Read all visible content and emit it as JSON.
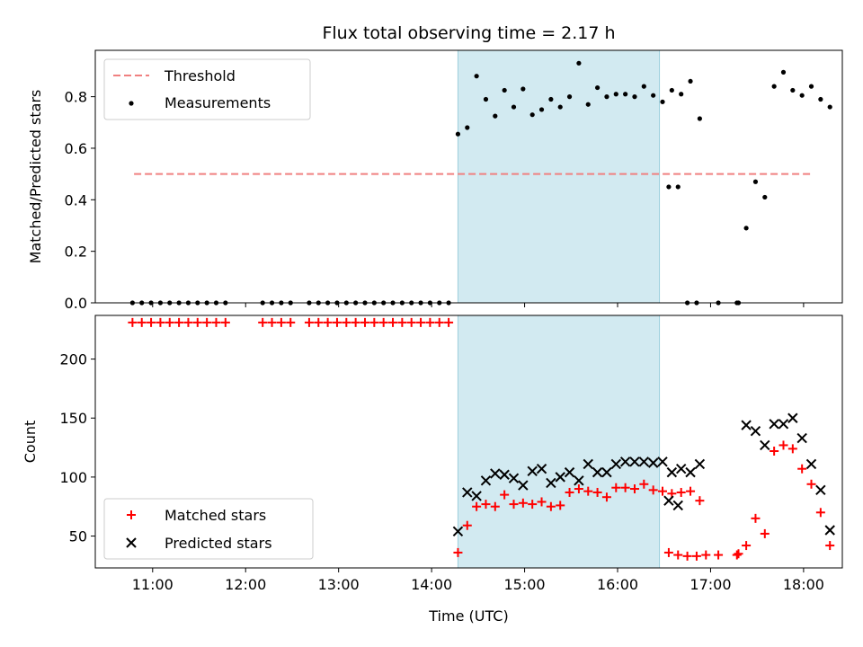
{
  "chart_data": [
    {
      "type": "scatter",
      "title": "Flux total observing time = 2.17 h",
      "xlabel": "",
      "ylabel": "Matched/Predicted stars",
      "ylim": [
        0,
        0.98
      ],
      "yticks": [
        "0.0",
        "0.2",
        "0.4",
        "0.6",
        "0.8"
      ],
      "grid": false,
      "legend_position": "upper-left",
      "threshold": {
        "name": "Threshold",
        "value": 0.5,
        "x_start": "10:48",
        "x_end": "18:05",
        "color": "#f08080"
      },
      "shaded_interval": {
        "start": "14:17",
        "end": "16:27",
        "color": "#add8e6"
      },
      "series": [
        {
          "name": "Measurements",
          "color": "#000000",
          "points": [
            [
              "10:47",
              0
            ],
            [
              "10:53",
              0
            ],
            [
              "10:59",
              0
            ],
            [
              "11:05",
              0
            ],
            [
              "11:11",
              0
            ],
            [
              "11:17",
              0
            ],
            [
              "11:23",
              0
            ],
            [
              "11:29",
              0
            ],
            [
              "11:35",
              0
            ],
            [
              "11:41",
              0
            ],
            [
              "11:47",
              0
            ],
            [
              "12:11",
              0
            ],
            [
              "12:17",
              0
            ],
            [
              "12:23",
              0
            ],
            [
              "12:29",
              0
            ],
            [
              "12:41",
              0
            ],
            [
              "12:47",
              0
            ],
            [
              "12:53",
              0
            ],
            [
              "12:59",
              0
            ],
            [
              "13:05",
              0
            ],
            [
              "13:11",
              0
            ],
            [
              "13:17",
              0
            ],
            [
              "13:23",
              0
            ],
            [
              "13:29",
              0
            ],
            [
              "13:35",
              0
            ],
            [
              "13:41",
              0
            ],
            [
              "13:47",
              0
            ],
            [
              "13:53",
              0
            ],
            [
              "13:59",
              0
            ],
            [
              "14:05",
              0
            ],
            [
              "14:11",
              0
            ],
            [
              "14:17",
              0.655
            ],
            [
              "14:23",
              0.68
            ],
            [
              "14:29",
              0.88
            ],
            [
              "14:35",
              0.79
            ],
            [
              "14:41",
              0.725
            ],
            [
              "14:47",
              0.825
            ],
            [
              "14:53",
              0.76
            ],
            [
              "14:59",
              0.83
            ],
            [
              "15:05",
              0.73
            ],
            [
              "15:11",
              0.75
            ],
            [
              "15:17",
              0.79
            ],
            [
              "15:23",
              0.76
            ],
            [
              "15:29",
              0.8
            ],
            [
              "15:35",
              0.93
            ],
            [
              "15:41",
              0.77
            ],
            [
              "15:47",
              0.835
            ],
            [
              "15:53",
              0.8
            ],
            [
              "15:59",
              0.81
            ],
            [
              "16:05",
              0.81
            ],
            [
              "16:11",
              0.8
            ],
            [
              "16:17",
              0.84
            ],
            [
              "16:23",
              0.805
            ],
            [
              "16:29",
              0.78
            ],
            [
              "16:35",
              0.825
            ],
            [
              "16:41",
              0.81
            ],
            [
              "16:47",
              0.86
            ],
            [
              "16:53",
              0.715
            ],
            [
              "16:33",
              0.45
            ],
            [
              "16:39",
              0.45
            ],
            [
              "16:45",
              0
            ],
            [
              "16:51",
              0
            ],
            [
              "17:05",
              0
            ],
            [
              "17:17",
              0
            ],
            [
              "17:18",
              0
            ],
            [
              "17:23",
              0.29
            ],
            [
              "17:29",
              0.47
            ],
            [
              "17:35",
              0.41
            ],
            [
              "17:41",
              0.84
            ],
            [
              "17:47",
              0.895
            ],
            [
              "17:53",
              0.825
            ],
            [
              "17:59",
              0.805
            ],
            [
              "18:05",
              0.84
            ],
            [
              "18:11",
              0.79
            ],
            [
              "18:17",
              0.76
            ]
          ]
        }
      ]
    },
    {
      "type": "scatter",
      "title": "",
      "xlabel": "Time (UTC)",
      "ylabel": "Count",
      "xlim": [
        "10:23",
        "18:25"
      ],
      "xticks": [
        "11:00",
        "12:00",
        "13:00",
        "14:00",
        "15:00",
        "16:00",
        "17:00",
        "18:00"
      ],
      "ylim": [
        23,
        237
      ],
      "yticks": [
        "50",
        "100",
        "150",
        "200"
      ],
      "grid": false,
      "legend_position": "lower-left",
      "shaded_interval": {
        "start": "14:17",
        "end": "16:27",
        "color": "#add8e6"
      },
      "series": [
        {
          "name": "Matched stars",
          "marker": "plus",
          "color": "#ff0000",
          "points": [
            [
              "10:47",
              231
            ],
            [
              "10:53",
              231
            ],
            [
              "10:59",
              231
            ],
            [
              "11:05",
              231
            ],
            [
              "11:11",
              231
            ],
            [
              "11:17",
              231
            ],
            [
              "11:23",
              231
            ],
            [
              "11:29",
              231
            ],
            [
              "11:35",
              231
            ],
            [
              "11:41",
              231
            ],
            [
              "11:47",
              231
            ],
            [
              "12:11",
              231
            ],
            [
              "12:17",
              231
            ],
            [
              "12:23",
              231
            ],
            [
              "12:29",
              231
            ],
            [
              "12:41",
              231
            ],
            [
              "12:47",
              231
            ],
            [
              "12:53",
              231
            ],
            [
              "12:59",
              231
            ],
            [
              "13:05",
              231
            ],
            [
              "13:11",
              231
            ],
            [
              "13:17",
              231
            ],
            [
              "13:23",
              231
            ],
            [
              "13:29",
              231
            ],
            [
              "13:35",
              231
            ],
            [
              "13:41",
              231
            ],
            [
              "13:47",
              231
            ],
            [
              "13:53",
              231
            ],
            [
              "13:59",
              231
            ],
            [
              "14:05",
              231
            ],
            [
              "14:11",
              231
            ],
            [
              "14:17",
              36
            ],
            [
              "14:23",
              59
            ],
            [
              "14:29",
              75
            ],
            [
              "14:35",
              77
            ],
            [
              "14:41",
              75
            ],
            [
              "14:47",
              85
            ],
            [
              "14:53",
              77
            ],
            [
              "14:59",
              78
            ],
            [
              "15:05",
              77
            ],
            [
              "15:11",
              79
            ],
            [
              "15:17",
              75
            ],
            [
              "15:23",
              76
            ],
            [
              "15:29",
              87
            ],
            [
              "15:35",
              90
            ],
            [
              "15:41",
              88
            ],
            [
              "15:47",
              87
            ],
            [
              "15:53",
              83
            ],
            [
              "15:59",
              91
            ],
            [
              "16:05",
              91
            ],
            [
              "16:11",
              90
            ],
            [
              "16:17",
              94
            ],
            [
              "16:23",
              89
            ],
            [
              "16:29",
              88
            ],
            [
              "16:35",
              86
            ],
            [
              "16:41",
              87
            ],
            [
              "16:47",
              88
            ],
            [
              "16:53",
              80
            ],
            [
              "16:33",
              36
            ],
            [
              "16:39",
              34
            ],
            [
              "16:45",
              33
            ],
            [
              "16:51",
              33
            ],
            [
              "16:57",
              34
            ],
            [
              "17:05",
              34
            ],
            [
              "17:17",
              34
            ],
            [
              "17:18",
              35
            ],
            [
              "17:23",
              42
            ],
            [
              "17:29",
              65
            ],
            [
              "17:35",
              52
            ],
            [
              "17:41",
              122
            ],
            [
              "17:47",
              127
            ],
            [
              "17:53",
              124
            ],
            [
              "17:59",
              107
            ],
            [
              "18:05",
              94
            ],
            [
              "18:11",
              70
            ],
            [
              "18:17",
              42
            ]
          ]
        },
        {
          "name": "Predicted stars",
          "marker": "x",
          "color": "#000000",
          "points": [
            [
              "14:17",
              54
            ],
            [
              "14:23",
              87
            ],
            [
              "14:29",
              84
            ],
            [
              "14:35",
              97
            ],
            [
              "14:41",
              103
            ],
            [
              "14:47",
              102
            ],
            [
              "14:53",
              99
            ],
            [
              "14:59",
              93
            ],
            [
              "15:05",
              105
            ],
            [
              "15:11",
              107
            ],
            [
              "15:17",
              95
            ],
            [
              "15:23",
              100
            ],
            [
              "15:29",
              104
            ],
            [
              "15:35",
              97
            ],
            [
              "15:41",
              111
            ],
            [
              "15:47",
              104
            ],
            [
              "15:53",
              104
            ],
            [
              "15:59",
              111
            ],
            [
              "16:05",
              113
            ],
            [
              "16:11",
              113
            ],
            [
              "16:17",
              113
            ],
            [
              "16:23",
              112
            ],
            [
              "16:29",
              113
            ],
            [
              "16:35",
              104
            ],
            [
              "16:41",
              107
            ],
            [
              "16:47",
              104
            ],
            [
              "16:53",
              111
            ],
            [
              "16:33",
              80
            ],
            [
              "16:39",
              76
            ],
            [
              "17:23",
              144
            ],
            [
              "17:29",
              139
            ],
            [
              "17:35",
              127
            ],
            [
              "17:41",
              145
            ],
            [
              "17:47",
              145
            ],
            [
              "17:53",
              150
            ],
            [
              "17:59",
              133
            ],
            [
              "18:05",
              111
            ],
            [
              "18:11",
              89
            ],
            [
              "18:17",
              55
            ]
          ]
        }
      ]
    }
  ]
}
